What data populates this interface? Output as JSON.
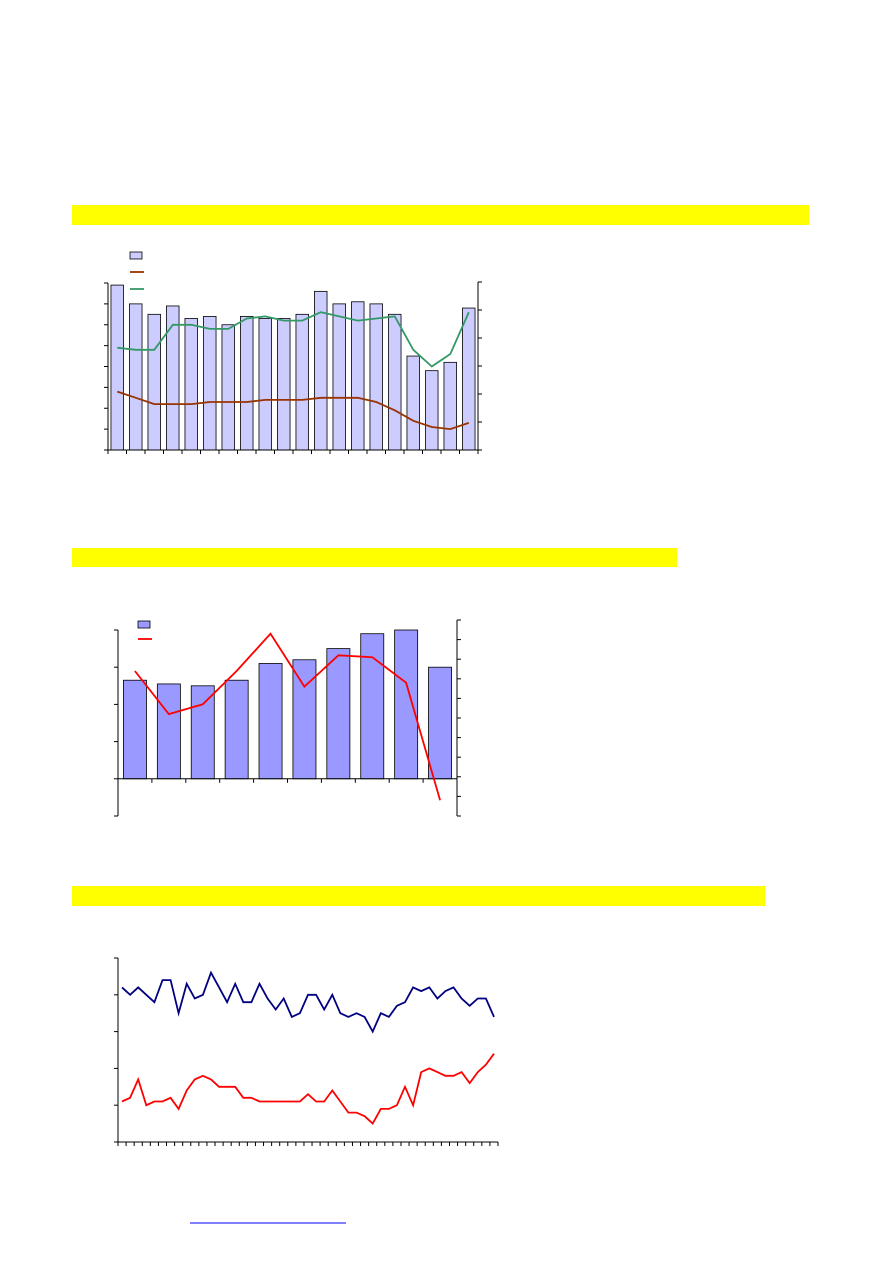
{
  "chart_data": [
    {
      "type": "bar",
      "categories": [
        null,
        null,
        null,
        null,
        null,
        null,
        null,
        null,
        null,
        null,
        null,
        null,
        null,
        null,
        null,
        null,
        null,
        null,
        null,
        null
      ],
      "ylim": [
        0,
        8
      ],
      "yticks": [
        0,
        1,
        2,
        3,
        4,
        5,
        6,
        7,
        8
      ],
      "y2lim": [
        0,
        6
      ],
      "y2ticks": [
        0,
        1,
        2,
        3,
        4,
        5,
        6
      ],
      "series": [
        {
          "type": "bar",
          "color": "#ccccff",
          "values": [
            7.9,
            7.0,
            6.5,
            6.9,
            6.3,
            6.4,
            6.0,
            6.4,
            6.3,
            6.3,
            6.5,
            7.6,
            7.0,
            7.1,
            7.0,
            6.5,
            4.5,
            3.8,
            4.2,
            6.8
          ]
        },
        {
          "type": "line",
          "color": "#993300",
          "values": [
            2.8,
            2.5,
            2.2,
            2.2,
            2.2,
            2.3,
            2.3,
            2.3,
            2.4,
            2.4,
            2.4,
            2.5,
            2.5,
            2.5,
            2.3,
            1.9,
            1.4,
            1.1,
            1.0,
            1.3
          ]
        },
        {
          "type": "line",
          "color": "#339966",
          "values": [
            4.9,
            4.8,
            4.8,
            6.0,
            6.0,
            5.8,
            5.8,
            6.3,
            6.4,
            6.2,
            6.2,
            6.6,
            6.4,
            6.2,
            6.3,
            6.4,
            4.8,
            4.0,
            4.6,
            6.6
          ]
        }
      ]
    },
    {
      "type": "bar",
      "categories": [
        null,
        null,
        null,
        null,
        null,
        null,
        null,
        null,
        null,
        null
      ],
      "ylim": [
        -1,
        4
      ],
      "yticks": [
        -1,
        0,
        1,
        2,
        3,
        4
      ],
      "y2lim": [
        -2,
        8
      ],
      "y2ticks": [
        -2,
        -1,
        0,
        1,
        2,
        3,
        4,
        5,
        6,
        7,
        8
      ],
      "series": [
        {
          "type": "bar",
          "color": "#9999ff",
          "values": [
            2.65,
            2.55,
            2.5,
            2.65,
            3.1,
            3.2,
            3.5,
            3.9,
            4.0,
            3.0
          ]
        },
        {
          "type": "line",
          "axis": "y2",
          "color": "#ff0000",
          "values": [
            5.4,
            3.2,
            3.7,
            5.4,
            7.3,
            4.6,
            6.2,
            6.1,
            4.8,
            -1.2
          ]
        }
      ]
    },
    {
      "type": "line",
      "categories": [
        null,
        null,
        null,
        null,
        null,
        null,
        null,
        null,
        null,
        null,
        null,
        null,
        null,
        null,
        null,
        null,
        null,
        null,
        null,
        null,
        null,
        null,
        null,
        null,
        null,
        null,
        null,
        null,
        null,
        null,
        null,
        null,
        null,
        null,
        null,
        null,
        null,
        null,
        null,
        null,
        null,
        null,
        null,
        null,
        null,
        null,
        null
      ],
      "ylim": [
        0,
        5
      ],
      "yticks": [
        0,
        1,
        2,
        3,
        4,
        5
      ],
      "series": [
        {
          "type": "line",
          "color": "#000080",
          "values": [
            4.2,
            4.0,
            4.2,
            4.0,
            3.8,
            4.4,
            4.4,
            3.5,
            4.3,
            3.9,
            4.0,
            4.6,
            4.2,
            3.8,
            4.3,
            3.8,
            3.8,
            4.3,
            3.9,
            3.6,
            3.9,
            3.4,
            3.5,
            4.0,
            4.0,
            3.6,
            4.0,
            3.5,
            3.4,
            3.5,
            3.4,
            3.0,
            3.5,
            3.4,
            3.7,
            3.8,
            4.2,
            4.1,
            4.2,
            3.9,
            4.1,
            4.2,
            3.9,
            3.7,
            3.9,
            3.9,
            3.4
          ]
        },
        {
          "type": "line",
          "color": "#ff0000",
          "values": [
            1.1,
            1.2,
            1.7,
            1.0,
            1.1,
            1.1,
            1.2,
            0.9,
            1.4,
            1.7,
            1.8,
            1.7,
            1.5,
            1.5,
            1.5,
            1.2,
            1.2,
            1.1,
            1.1,
            1.1,
            1.1,
            1.1,
            1.1,
            1.3,
            1.1,
            1.1,
            1.4,
            1.1,
            0.8,
            0.8,
            0.7,
            0.5,
            0.9,
            0.9,
            1.0,
            1.5,
            1.0,
            1.9,
            2.0,
            1.9,
            1.8,
            1.8,
            1.9,
            1.6,
            1.9,
            2.1,
            2.4
          ]
        }
      ]
    }
  ]
}
